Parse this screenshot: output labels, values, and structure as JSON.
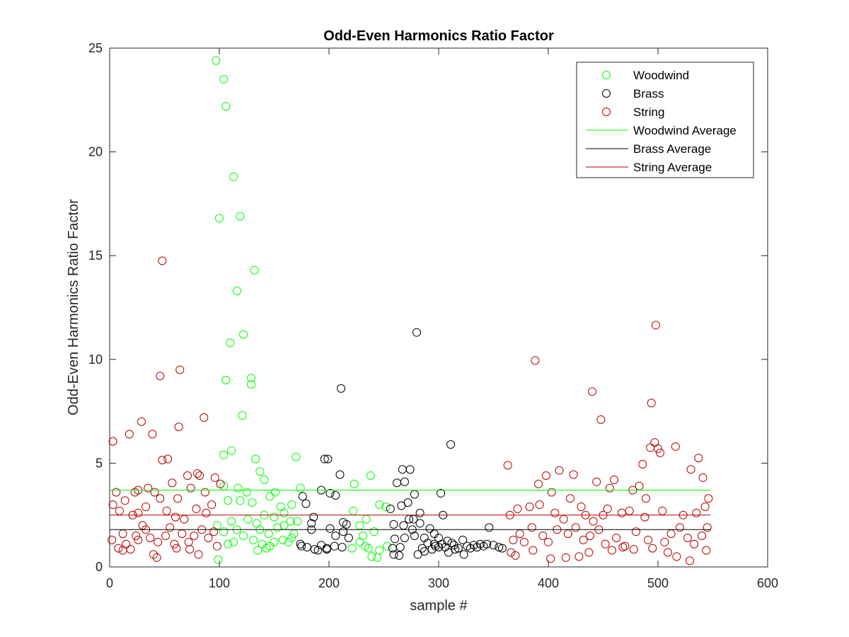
{
  "chart_data": {
    "type": "scatter",
    "title": "Odd-Even Harmonics Ratio Factor",
    "xlabel": "sample #",
    "ylabel": "Odd-Even Harmonics Ratio Factor",
    "xlim": [
      0,
      600
    ],
    "ylim": [
      0,
      25
    ],
    "xticks": [
      0,
      100,
      200,
      300,
      400,
      500,
      600
    ],
    "yticks": [
      0,
      5,
      10,
      15,
      20,
      25
    ],
    "grid": false,
    "legend": {
      "placement": "top-right"
    },
    "series": [
      {
        "name": "Woodwind",
        "marker": "circle",
        "color": "#00ff00",
        "points": [
          [
            97,
            24.4
          ],
          [
            104,
            23.5
          ],
          [
            106,
            22.2
          ],
          [
            113,
            18.8
          ],
          [
            100,
            16.8
          ],
          [
            119,
            16.9
          ],
          [
            132,
            14.3
          ],
          [
            116,
            13.3
          ],
          [
            122,
            11.2
          ],
          [
            110,
            10.8
          ],
          [
            106,
            9.0
          ],
          [
            129,
            9.1
          ],
          [
            129,
            8.8
          ],
          [
            121,
            7.3
          ],
          [
            111,
            5.6
          ],
          [
            104,
            5.4
          ],
          [
            133,
            5.2
          ],
          [
            170,
            5.3
          ],
          [
            137,
            4.6
          ],
          [
            141,
            4.2
          ],
          [
            104,
            3.9
          ],
          [
            117,
            3.8
          ],
          [
            125,
            3.6
          ],
          [
            146,
            3.4
          ],
          [
            151,
            3.6
          ],
          [
            174,
            3.8
          ],
          [
            108,
            3.2
          ],
          [
            119,
            3.2
          ],
          [
            130,
            3.1
          ],
          [
            156,
            2.9
          ],
          [
            166,
            3.0
          ],
          [
            223,
            4.0
          ],
          [
            238,
            4.4
          ],
          [
            252,
            2.9
          ],
          [
            246,
            3.0
          ],
          [
            222,
            2.7
          ],
          [
            234,
            2.3
          ],
          [
            141,
            2.5
          ],
          [
            126,
            2.3
          ],
          [
            134,
            2.1
          ],
          [
            150,
            2.4
          ],
          [
            159,
            2.6
          ],
          [
            165,
            2.2
          ],
          [
            111,
            2.2
          ],
          [
            98,
            2.0
          ],
          [
            104,
            1.7
          ],
          [
            116,
            1.8
          ],
          [
            122,
            1.5
          ],
          [
            137,
            1.8
          ],
          [
            145,
            1.6
          ],
          [
            153,
            1.9
          ],
          [
            159,
            2.0
          ],
          [
            166,
            1.4
          ],
          [
            171,
            2.2
          ],
          [
            228,
            2.0
          ],
          [
            231,
            1.5
          ],
          [
            241,
            1.7
          ],
          [
            108,
            1.1
          ],
          [
            113,
            1.2
          ],
          [
            131,
            1.3
          ],
          [
            139,
            1.1
          ],
          [
            146,
            1.0
          ],
          [
            158,
            1.3
          ],
          [
            163,
            1.2
          ],
          [
            221,
            0.9
          ],
          [
            236,
            0.9
          ],
          [
            246,
            0.8
          ],
          [
            253,
            1.0
          ],
          [
            135,
            0.8
          ],
          [
            143,
            0.9
          ],
          [
            239,
            0.5
          ],
          [
            244,
            0.45
          ],
          [
            99,
            0.35
          ],
          [
            150,
            1.2
          ],
          [
            168,
            1.6
          ],
          [
            228,
            1.2
          ],
          [
            233,
            1.0
          ]
        ]
      },
      {
        "name": "Brass",
        "marker": "circle",
        "color": "#000000",
        "points": [
          [
            280,
            11.3
          ],
          [
            211,
            8.6
          ],
          [
            311,
            5.9
          ],
          [
            196,
            5.2
          ],
          [
            199,
            5.2
          ],
          [
            267,
            4.7
          ],
          [
            274,
            4.7
          ],
          [
            210,
            4.45
          ],
          [
            262,
            4.05
          ],
          [
            269,
            4.1
          ],
          [
            193,
            3.7
          ],
          [
            201,
            3.55
          ],
          [
            206,
            3.45
          ],
          [
            302,
            3.55
          ],
          [
            278,
            3.5
          ],
          [
            176,
            3.4
          ],
          [
            179,
            3.05
          ],
          [
            272,
            3.1
          ],
          [
            266,
            2.95
          ],
          [
            256,
            2.8
          ],
          [
            283,
            2.6
          ],
          [
            304,
            2.5
          ],
          [
            186,
            2.4
          ],
          [
            184,
            2.1
          ],
          [
            213,
            2.15
          ],
          [
            216,
            2.05
          ],
          [
            273,
            2.3
          ],
          [
            277,
            2.3
          ],
          [
            268,
            2.0
          ],
          [
            259,
            2.05
          ],
          [
            283,
            2.1
          ],
          [
            201,
            1.85
          ],
          [
            213,
            1.7
          ],
          [
            276,
            1.8
          ],
          [
            292,
            1.85
          ],
          [
            296,
            1.6
          ],
          [
            346,
            1.9
          ],
          [
            184,
            1.8
          ],
          [
            206,
            1.5
          ],
          [
            218,
            1.4
          ],
          [
            260,
            1.35
          ],
          [
            269,
            1.4
          ],
          [
            278,
            1.5
          ],
          [
            287,
            1.4
          ],
          [
            300,
            1.4
          ],
          [
            322,
            1.3
          ],
          [
            174,
            1.1
          ],
          [
            180,
            0.95
          ],
          [
            187,
            0.85
          ],
          [
            193,
            1.05
          ],
          [
            198,
            0.9
          ],
          [
            205,
            1.0
          ],
          [
            212,
            0.95
          ],
          [
            258,
            0.9
          ],
          [
            265,
            0.95
          ],
          [
            285,
            0.9
          ],
          [
            290,
            1.15
          ],
          [
            297,
            1.0
          ],
          [
            303,
            1.1
          ],
          [
            308,
            1.25
          ],
          [
            314,
            1.05
          ],
          [
            318,
            0.9
          ],
          [
            326,
            1.0
          ],
          [
            332,
            1.05
          ],
          [
            338,
            1.1
          ],
          [
            344,
            1.1
          ],
          [
            350,
            1.05
          ],
          [
            355,
            0.95
          ],
          [
            358,
            0.9
          ],
          [
            175,
            1.0
          ],
          [
            190,
            0.8
          ],
          [
            259,
            0.6
          ],
          [
            264,
            0.55
          ],
          [
            281,
            0.6
          ],
          [
            287,
            0.75
          ],
          [
            294,
            0.85
          ],
          [
            300,
            0.95
          ],
          [
            309,
            0.7
          ],
          [
            315,
            0.85
          ],
          [
            323,
            0.6
          ],
          [
            329,
            0.9
          ],
          [
            335,
            0.95
          ],
          [
            341,
            1.0
          ],
          [
            198,
            0.85
          ],
          [
            306,
            0.95
          ],
          [
            296,
            1.1
          ],
          [
            312,
            1.15
          ]
        ]
      },
      {
        "name": "String",
        "marker": "circle",
        "color": "#b80000",
        "points": [
          [
            48,
            14.75
          ],
          [
            498,
            11.65
          ],
          [
            388,
            9.95
          ],
          [
            64,
            9.5
          ],
          [
            46,
            9.2
          ],
          [
            440,
            8.45
          ],
          [
            86,
            7.2
          ],
          [
            494,
            7.9
          ],
          [
            448,
            7.1
          ],
          [
            29,
            7.0
          ],
          [
            63,
            6.75
          ],
          [
            39,
            6.4
          ],
          [
            18,
            6.4
          ],
          [
            3,
            6.05
          ],
          [
            497,
            6.0
          ],
          [
            493,
            5.75
          ],
          [
            502,
            5.5
          ],
          [
            500,
            5.7
          ],
          [
            516,
            5.8
          ],
          [
            537,
            5.25
          ],
          [
            53,
            5.2
          ],
          [
            48,
            5.15
          ],
          [
            363,
            4.9
          ],
          [
            486,
            4.95
          ],
          [
            6,
            3.6
          ],
          [
            14,
            3.2
          ],
          [
            23,
            3.6
          ],
          [
            26,
            3.7
          ],
          [
            35,
            3.8
          ],
          [
            41,
            3.6
          ],
          [
            57,
            4.05
          ],
          [
            71,
            4.4
          ],
          [
            80,
            4.5
          ],
          [
            82,
            4.4
          ],
          [
            96,
            4.3
          ],
          [
            101,
            4.0
          ],
          [
            87,
            3.6
          ],
          [
            74,
            3.8
          ],
          [
            62,
            3.3
          ],
          [
            46,
            3.3
          ],
          [
            398,
            4.4
          ],
          [
            410,
            4.65
          ],
          [
            423,
            4.45
          ],
          [
            444,
            4.1
          ],
          [
            456,
            3.8
          ],
          [
            460,
            4.2
          ],
          [
            477,
            3.7
          ],
          [
            483,
            3.9
          ],
          [
            391,
            4.0
          ],
          [
            403,
            3.6
          ],
          [
            420,
            3.3
          ],
          [
            430,
            2.9
          ],
          [
            454,
            2.8
          ],
          [
            489,
            3.3
          ],
          [
            530,
            4.7
          ],
          [
            541,
            4.3
          ],
          [
            546,
            3.3
          ],
          [
            3,
            3.0
          ],
          [
            9,
            2.7
          ],
          [
            21,
            2.5
          ],
          [
            26,
            2.6
          ],
          [
            33,
            2.9
          ],
          [
            52,
            2.7
          ],
          [
            60,
            2.4
          ],
          [
            68,
            2.3
          ],
          [
            79,
            2.8
          ],
          [
            88,
            2.6
          ],
          [
            93,
            3.0
          ],
          [
            365,
            2.5
          ],
          [
            372,
            2.8
          ],
          [
            383,
            2.9
          ],
          [
            392,
            3.0
          ],
          [
            406,
            2.6
          ],
          [
            414,
            2.3
          ],
          [
            434,
            2.5
          ],
          [
            441,
            2.2
          ],
          [
            450,
            2.5
          ],
          [
            467,
            2.6
          ],
          [
            474,
            2.7
          ],
          [
            488,
            2.4
          ],
          [
            504,
            2.7
          ],
          [
            523,
            2.5
          ],
          [
            535,
            2.6
          ],
          [
            543,
            2.9
          ],
          [
            2,
            1.3
          ],
          [
            8,
            0.9
          ],
          [
            12,
            1.6
          ],
          [
            15,
            1.1
          ],
          [
            19,
            0.85
          ],
          [
            24,
            1.5
          ],
          [
            30,
            2.0
          ],
          [
            33,
            1.8
          ],
          [
            37,
            1.4
          ],
          [
            44,
            1.2
          ],
          [
            51,
            1.5
          ],
          [
            55,
            1.9
          ],
          [
            59,
            1.1
          ],
          [
            66,
            1.6
          ],
          [
            72,
            1.2
          ],
          [
            77,
            1.5
          ],
          [
            84,
            1.8
          ],
          [
            90,
            1.4
          ],
          [
            95,
            1.7
          ],
          [
            98,
            1.0
          ],
          [
            368,
            1.3
          ],
          [
            374,
            1.6
          ],
          [
            378,
            1.2
          ],
          [
            385,
            1.9
          ],
          [
            395,
            1.5
          ],
          [
            400,
            1.2
          ],
          [
            408,
            1.8
          ],
          [
            418,
            1.6
          ],
          [
            425,
            1.9
          ],
          [
            432,
            1.3
          ],
          [
            438,
            1.5
          ],
          [
            446,
            1.8
          ],
          [
            452,
            1.1
          ],
          [
            462,
            1.4
          ],
          [
            470,
            1.0
          ],
          [
            480,
            1.7
          ],
          [
            491,
            1.3
          ],
          [
            506,
            1.2
          ],
          [
            512,
            1.6
          ],
          [
            520,
            1.9
          ],
          [
            527,
            1.4
          ],
          [
            533,
            1.1
          ],
          [
            540,
            1.5
          ],
          [
            545,
            1.9
          ],
          [
            12,
            0.8
          ],
          [
            26,
            1.3
          ],
          [
            40,
            0.6
          ],
          [
            43,
            0.45
          ],
          [
            61,
            0.9
          ],
          [
            73,
            0.85
          ],
          [
            81,
            0.6
          ],
          [
            366,
            0.7
          ],
          [
            370,
            0.55
          ],
          [
            386,
            0.8
          ],
          [
            402,
            0.4
          ],
          [
            416,
            0.45
          ],
          [
            428,
            0.5
          ],
          [
            437,
            0.7
          ],
          [
            458,
            0.8
          ],
          [
            468,
            0.95
          ],
          [
            478,
            0.85
          ],
          [
            495,
            0.9
          ],
          [
            509,
            0.7
          ],
          [
            517,
            0.5
          ],
          [
            529,
            0.3
          ],
          [
            544,
            0.8
          ]
        ]
      },
      {
        "name": "Woodwind Average",
        "type": "line",
        "color": "#00ff00",
        "x": [
          0,
          548
        ],
        "y": [
          3.7,
          3.7
        ]
      },
      {
        "name": "Brass Average",
        "type": "line",
        "color": "#000000",
        "x": [
          0,
          548
        ],
        "y": [
          1.8,
          1.8
        ]
      },
      {
        "name": "String Average",
        "type": "line",
        "color": "#b80000",
        "x": [
          0,
          548
        ],
        "y": [
          2.5,
          2.5
        ]
      }
    ]
  }
}
